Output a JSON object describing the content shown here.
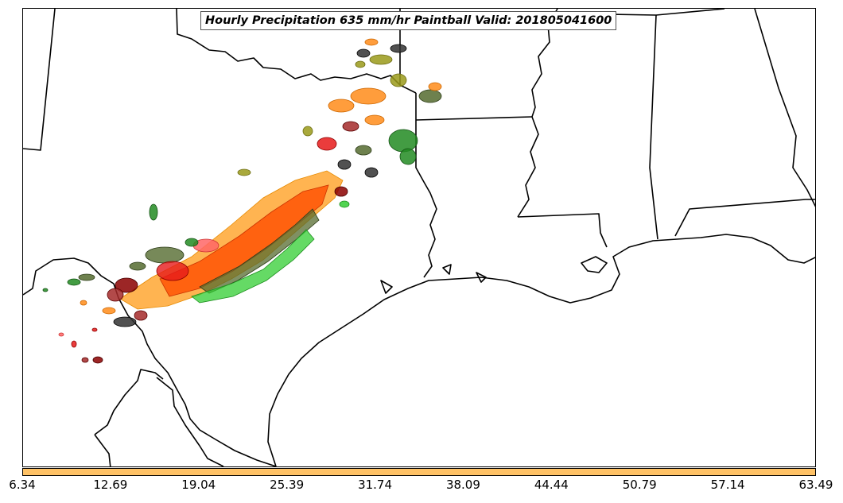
{
  "title": "Hourly Precipitation 635 mm/hr Paintball Valid: 201805041600",
  "colorbar": {
    "color": "#ffc266",
    "ticks": [
      "6.34",
      "12.69",
      "19.04",
      "25.39",
      "31.74",
      "38.09",
      "44.44",
      "50.79",
      "57.14",
      "63.49"
    ]
  },
  "map_features": [
    "state-borders",
    "coastline",
    "international-border"
  ],
  "member_colors": [
    "#ff8c1a",
    "#ffa733",
    "#ff4d00",
    "#e61a1a",
    "#ff6666",
    "#8b0000",
    "#a52a2a",
    "#556b2f",
    "#9a9a1a",
    "#228b22",
    "#32cd32",
    "#333333"
  ]
}
